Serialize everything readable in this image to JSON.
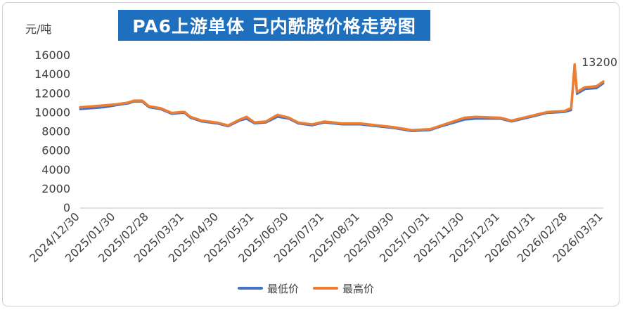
{
  "chart_data": {
    "type": "line",
    "title": "PA6上游单体 己内酰胺价格走势图",
    "ylabel": "元/吨",
    "xlabel": "",
    "ylim": [
      0,
      16000
    ],
    "y_ticks": [
      0,
      2000,
      4000,
      6000,
      8000,
      10000,
      12000,
      14000,
      16000
    ],
    "y_tick_labels": [
      "0",
      "2000",
      "4000",
      "6000",
      "8000",
      "10000",
      "12000",
      "14000",
      "16000"
    ],
    "x_range": [
      "2024-12-30",
      "2026-03-31"
    ],
    "x_tick_labels": [
      "2024/12/30",
      "2025/01/30",
      "2025/02/28",
      "2025/03/31",
      "2025/04/30",
      "2025/05/31",
      "2025/06/30",
      "2025/07/31",
      "2025/08/31",
      "2025/09/30",
      "2025/10/31",
      "2025/11/30",
      "2025/12/31",
      "2026/01/31",
      "2026/02/28",
      "2026/03/31"
    ],
    "grid": false,
    "legend_position": "bottom",
    "annotation": {
      "label": "13200",
      "x": "2026-03-31",
      "y": 13200
    },
    "series": [
      {
        "name": "最低价",
        "color": "#4472c4",
        "points": [
          [
            "2024-12-30",
            10300
          ],
          [
            "2025-01-10",
            10400
          ],
          [
            "2025-01-20",
            10500
          ],
          [
            "2025-01-30",
            10700
          ],
          [
            "2025-02-10",
            10900
          ],
          [
            "2025-02-15",
            11100
          ],
          [
            "2025-02-22",
            11100
          ],
          [
            "2025-02-28",
            10500
          ],
          [
            "2025-03-10",
            10300
          ],
          [
            "2025-03-20",
            9800
          ],
          [
            "2025-03-28",
            9900
          ],
          [
            "2025-03-31",
            9900
          ],
          [
            "2025-04-05",
            9400
          ],
          [
            "2025-04-15",
            9000
          ],
          [
            "2025-04-28",
            8800
          ],
          [
            "2025-05-08",
            8500
          ],
          [
            "2025-05-18",
            9100
          ],
          [
            "2025-05-24",
            9300
          ],
          [
            "2025-05-31",
            8800
          ],
          [
            "2025-06-10",
            8900
          ],
          [
            "2025-06-20",
            9500
          ],
          [
            "2025-06-30",
            9300
          ],
          [
            "2025-07-08",
            8800
          ],
          [
            "2025-07-20",
            8600
          ],
          [
            "2025-07-31",
            8900
          ],
          [
            "2025-08-15",
            8700
          ],
          [
            "2025-08-31",
            8700
          ],
          [
            "2025-09-15",
            8500
          ],
          [
            "2025-09-30",
            8300
          ],
          [
            "2025-10-15",
            8000
          ],
          [
            "2025-10-31",
            8100
          ],
          [
            "2025-11-10",
            8500
          ],
          [
            "2025-11-30",
            9200
          ],
          [
            "2025-12-10",
            9300
          ],
          [
            "2025-12-31",
            9300
          ],
          [
            "2026-01-10",
            9000
          ],
          [
            "2026-01-31",
            9600
          ],
          [
            "2026-02-10",
            9900
          ],
          [
            "2026-02-25",
            10000
          ],
          [
            "2026-03-03",
            10200
          ],
          [
            "2026-03-06",
            14600
          ],
          [
            "2026-03-08",
            11900
          ],
          [
            "2026-03-15",
            12400
          ],
          [
            "2026-03-25",
            12500
          ],
          [
            "2026-03-31",
            13000
          ]
        ]
      },
      {
        "name": "最高价",
        "color": "#ed7d31",
        "points": [
          [
            "2024-12-30",
            10500
          ],
          [
            "2025-01-10",
            10600
          ],
          [
            "2025-01-20",
            10700
          ],
          [
            "2025-01-30",
            10800
          ],
          [
            "2025-02-10",
            11000
          ],
          [
            "2025-02-15",
            11200
          ],
          [
            "2025-02-22",
            11200
          ],
          [
            "2025-02-28",
            10600
          ],
          [
            "2025-03-10",
            10400
          ],
          [
            "2025-03-20",
            9900
          ],
          [
            "2025-03-28",
            10000
          ],
          [
            "2025-03-31",
            10000
          ],
          [
            "2025-04-05",
            9500
          ],
          [
            "2025-04-15",
            9100
          ],
          [
            "2025-04-28",
            8900
          ],
          [
            "2025-05-08",
            8600
          ],
          [
            "2025-05-18",
            9200
          ],
          [
            "2025-05-24",
            9500
          ],
          [
            "2025-05-31",
            8900
          ],
          [
            "2025-06-10",
            9000
          ],
          [
            "2025-06-20",
            9700
          ],
          [
            "2025-06-30",
            9400
          ],
          [
            "2025-07-08",
            8900
          ],
          [
            "2025-07-20",
            8700
          ],
          [
            "2025-07-31",
            9000
          ],
          [
            "2025-08-15",
            8800
          ],
          [
            "2025-08-31",
            8800
          ],
          [
            "2025-09-15",
            8600
          ],
          [
            "2025-09-30",
            8400
          ],
          [
            "2025-10-15",
            8100
          ],
          [
            "2025-10-31",
            8200
          ],
          [
            "2025-11-10",
            8600
          ],
          [
            "2025-11-30",
            9400
          ],
          [
            "2025-12-10",
            9500
          ],
          [
            "2025-12-31",
            9400
          ],
          [
            "2026-01-10",
            9100
          ],
          [
            "2026-01-31",
            9700
          ],
          [
            "2026-02-10",
            10000
          ],
          [
            "2026-02-25",
            10100
          ],
          [
            "2026-03-03",
            10400
          ],
          [
            "2026-03-06",
            15000
          ],
          [
            "2026-03-08",
            12100
          ],
          [
            "2026-03-15",
            12600
          ],
          [
            "2026-03-25",
            12700
          ],
          [
            "2026-03-31",
            13200
          ]
        ]
      }
    ]
  }
}
